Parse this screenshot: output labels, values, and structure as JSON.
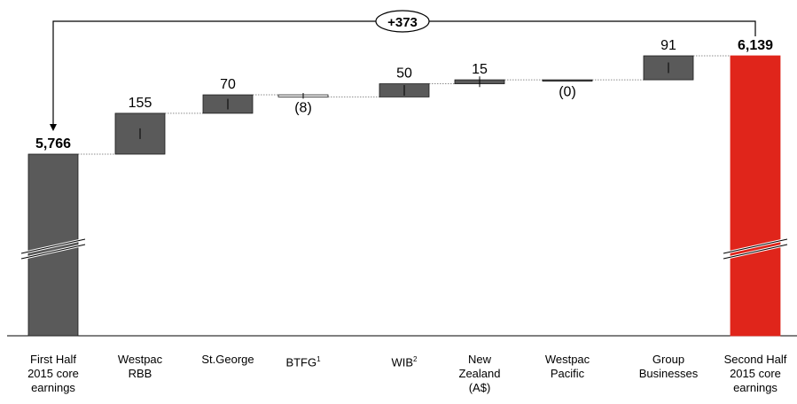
{
  "chart_data": {
    "type": "waterfall",
    "unit": "",
    "ylim": [
      5600,
      6200
    ],
    "axis_break": true,
    "colors": {
      "bar": "#5a5a5a",
      "final": "#e0251b",
      "connector": "#8c8c8c"
    },
    "categories": [
      {
        "lines": [
          "First Half",
          "2015 core",
          "earnings"
        ],
        "sup": ""
      },
      {
        "lines": [
          "Westpac",
          "RBB"
        ],
        "sup": ""
      },
      {
        "lines": [
          "St.George"
        ],
        "sup": ""
      },
      {
        "lines": [
          "BTFG"
        ],
        "sup": "1"
      },
      {
        "lines": [
          "WIB"
        ],
        "sup": "2"
      },
      {
        "lines": [
          "New",
          "Zealand",
          "(A$)"
        ],
        "sup": ""
      },
      {
        "lines": [
          "Westpac",
          "Pacific"
        ],
        "sup": ""
      },
      {
        "lines": [
          "Group",
          "Businesses"
        ],
        "sup": ""
      },
      {
        "lines": [
          "Second Half",
          "2015 core",
          "earnings"
        ],
        "sup": ""
      }
    ],
    "bars": [
      {
        "kind": "total",
        "value": 5766,
        "label": "5,766"
      },
      {
        "kind": "delta",
        "value": 155,
        "label": "155"
      },
      {
        "kind": "delta",
        "value": 70,
        "label": "70"
      },
      {
        "kind": "delta",
        "value": -8,
        "label": "(8)"
      },
      {
        "kind": "delta",
        "value": 50,
        "label": "50"
      },
      {
        "kind": "delta",
        "value": 15,
        "label": "15"
      },
      {
        "kind": "delta",
        "value": 0,
        "label": "(0)"
      },
      {
        "kind": "delta",
        "value": 91,
        "label": "91"
      },
      {
        "kind": "total",
        "value": 6139,
        "label": "6,139"
      }
    ],
    "change_annotation": "+373"
  }
}
